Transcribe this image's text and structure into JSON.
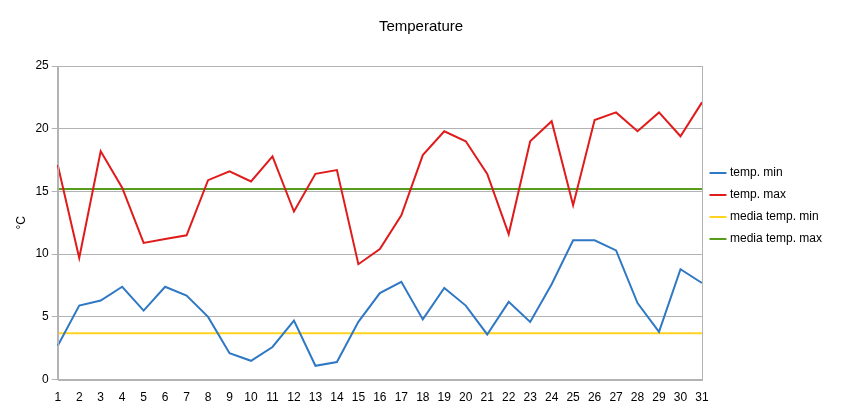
{
  "chart_data": {
    "type": "line",
    "title": "Temperature",
    "y_label": "°C",
    "categories": [
      "1",
      "2",
      "3",
      "4",
      "5",
      "6",
      "7",
      "8",
      "9",
      "10",
      "11",
      "12",
      "13",
      "14",
      "15",
      "16",
      "17",
      "18",
      "19",
      "20",
      "21",
      "22",
      "23",
      "24",
      "25",
      "26",
      "27",
      "28",
      "29",
      "30",
      "31"
    ],
    "series": [
      {
        "name": "temp. min",
        "color": "#2f78c4",
        "values": [
          2.7,
          5.9,
          6.3,
          7.4,
          5.5,
          7.4,
          6.7,
          5.0,
          2.1,
          1.5,
          2.6,
          4.7,
          1.1,
          1.4,
          4.6,
          6.9,
          7.8,
          4.8,
          7.3,
          5.9,
          3.6,
          6.2,
          4.6,
          7.6,
          11.1,
          11.1,
          10.3,
          6.1,
          3.8,
          8.8,
          7.7
        ]
      },
      {
        "name": "temp. max",
        "color": "#e01b1b",
        "values": [
          17.1,
          9.7,
          18.2,
          15.3,
          10.9,
          11.2,
          11.5,
          15.9,
          16.6,
          15.8,
          17.8,
          13.4,
          16.4,
          16.7,
          9.2,
          10.4,
          13.1,
          17.9,
          19.8,
          19.0,
          16.4,
          11.6,
          19.0,
          20.6,
          13.9,
          20.7,
          21.3,
          19.8,
          21.3,
          19.4,
          22.1
        ]
      },
      {
        "name": "media temp. min",
        "color": "#ffd320",
        "values": [
          3.7,
          3.7,
          3.7,
          3.7,
          3.7,
          3.7,
          3.7,
          3.7,
          3.7,
          3.7,
          3.7,
          3.7,
          3.7,
          3.7,
          3.7,
          3.7,
          3.7,
          3.7,
          3.7,
          3.7,
          3.7,
          3.7,
          3.7,
          3.7,
          3.7,
          3.7,
          3.7,
          3.7,
          3.7,
          3.7,
          3.7
        ]
      },
      {
        "name": "media temp. max",
        "color": "#579d1c",
        "values": [
          15.2,
          15.2,
          15.2,
          15.2,
          15.2,
          15.2,
          15.2,
          15.2,
          15.2,
          15.2,
          15.2,
          15.2,
          15.2,
          15.2,
          15.2,
          15.2,
          15.2,
          15.2,
          15.2,
          15.2,
          15.2,
          15.2,
          15.2,
          15.2,
          15.2,
          15.2,
          15.2,
          15.2,
          15.2,
          15.2,
          15.2
        ]
      }
    ],
    "ylim": [
      0,
      25
    ],
    "yticks": [
      0,
      5,
      10,
      15,
      20,
      25
    ],
    "grid": true,
    "legend": "right"
  }
}
